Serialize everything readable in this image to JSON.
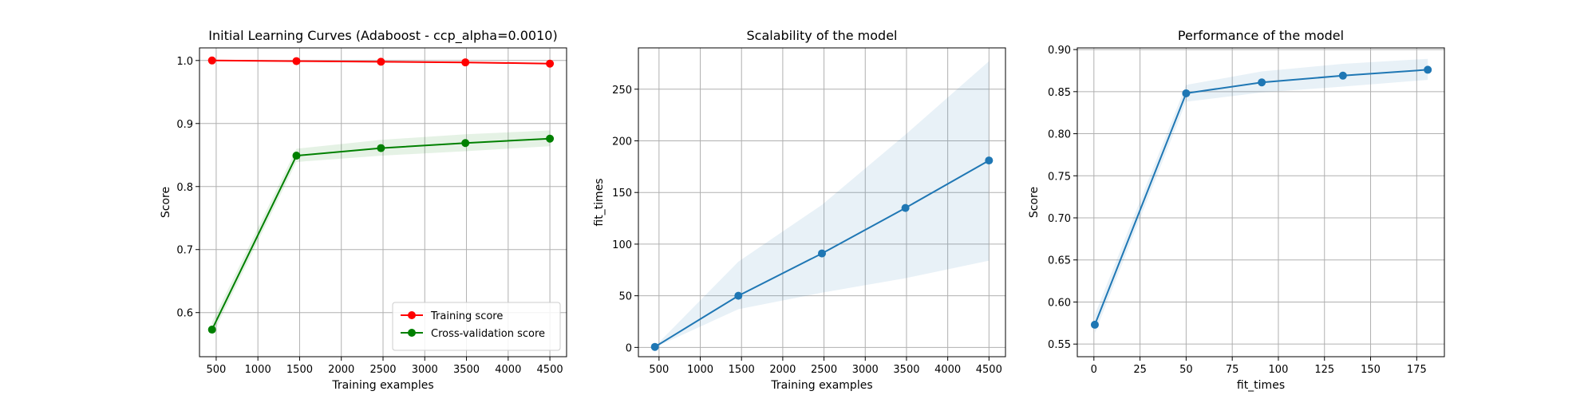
{
  "chart_data": [
    {
      "type": "line",
      "title": "Initial Learning Curves (Adaboost - ccp_alpha=0.0010)",
      "xlabel": "Training examples",
      "ylabel": "Score",
      "xlim": [
        300,
        4700
      ],
      "ylim": [
        0.53,
        1.02
      ],
      "xticks": [
        500,
        1000,
        1500,
        2000,
        2500,
        3000,
        3500,
        4000,
        4500
      ],
      "yticks": [
        0.6,
        0.7,
        0.8,
        0.9,
        1.0
      ],
      "ytick_labels": [
        "0.6",
        "0.7",
        "0.8",
        "0.9",
        "1.0"
      ],
      "grid": true,
      "legend": "lower-right",
      "x": [
        450,
        1462,
        2475,
        3487,
        4500
      ],
      "series": [
        {
          "name": "Training score",
          "color": "#ff0000",
          "values": [
            1.0,
            0.999,
            0.998,
            0.997,
            0.995
          ],
          "band": [
            [
              0.999,
              1.001
            ],
            [
              0.998,
              1.0
            ],
            [
              0.997,
              0.999
            ],
            [
              0.996,
              0.998
            ],
            [
              0.994,
              0.996
            ]
          ]
        },
        {
          "name": "Cross-validation score",
          "color": "#008000",
          "values": [
            0.573,
            0.849,
            0.861,
            0.869,
            0.876
          ],
          "band": [
            [
              0.563,
              0.585
            ],
            [
              0.839,
              0.86
            ],
            [
              0.849,
              0.874
            ],
            [
              0.856,
              0.883
            ],
            [
              0.864,
              0.889
            ]
          ]
        }
      ]
    },
    {
      "type": "line",
      "title": "Scalability of the model",
      "xlabel": "Training examples",
      "ylabel": "fit_times",
      "xlim": [
        250,
        4700
      ],
      "ylim": [
        -9,
        290
      ],
      "xticks": [
        500,
        1000,
        1500,
        2000,
        2500,
        3000,
        3500,
        4000,
        4500
      ],
      "yticks": [
        0,
        50,
        100,
        150,
        200,
        250
      ],
      "ytick_labels": [
        "0",
        "50",
        "100",
        "150",
        "200",
        "250"
      ],
      "grid": true,
      "x": [
        450,
        1462,
        2475,
        3487,
        4500
      ],
      "series": [
        {
          "color": "#1f77b4",
          "values": [
            0.5,
            50,
            91,
            135,
            181
          ],
          "band": [
            [
              0.1,
              1.0
            ],
            [
              37,
              83
            ],
            [
              53,
              138
            ],
            [
              67,
              206
            ],
            [
              84,
              277
            ]
          ]
        }
      ]
    },
    {
      "type": "line",
      "title": "Performance of the model",
      "xlabel": "fit_times",
      "ylabel": "Score",
      "xlim": [
        -9,
        190
      ],
      "ylim": [
        0.535,
        0.902
      ],
      "xticks": [
        0,
        25,
        50,
        75,
        100,
        125,
        150,
        175
      ],
      "yticks": [
        0.55,
        0.6,
        0.65,
        0.7,
        0.75,
        0.8,
        0.85,
        0.9
      ],
      "ytick_labels": [
        "0.55",
        "0.60",
        "0.65",
        "0.70",
        "0.75",
        "0.80",
        "0.85",
        "0.90"
      ],
      "grid": true,
      "x": [
        0.5,
        50,
        91,
        135,
        181
      ],
      "series": [
        {
          "color": "#1f77b4",
          "values": [
            0.573,
            0.848,
            0.861,
            0.869,
            0.876
          ],
          "band": [
            [
              0.563,
              0.585
            ],
            [
              0.838,
              0.858
            ],
            [
              0.849,
              0.874
            ],
            [
              0.856,
              0.883
            ],
            [
              0.864,
              0.889
            ]
          ]
        }
      ]
    }
  ]
}
